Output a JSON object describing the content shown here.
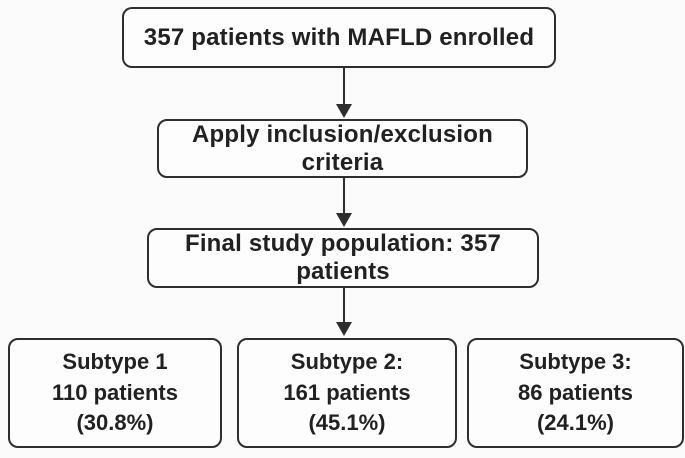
{
  "flowchart": {
    "enrolled": {
      "label": "357 patients with MAFLD enrolled"
    },
    "criteria": {
      "label": "Apply inclusion/exclusion criteria"
    },
    "final": {
      "label": "Final study population: 357 patients"
    },
    "subtypes": [
      {
        "title": "Subtype 1",
        "patients": "110 patients",
        "percent": "(30.8%)"
      },
      {
        "title": "Subtype 2:",
        "patients": "161 patients",
        "percent": "(45.1%)"
      },
      {
        "title": "Subtype 3:",
        "patients": "86 patients",
        "percent": "(24.1%)"
      }
    ],
    "colors": {
      "border": "#2e2e2e",
      "text": "#212121",
      "box_background": "#fdfdfd",
      "page_background": "#fbfbfb"
    }
  }
}
